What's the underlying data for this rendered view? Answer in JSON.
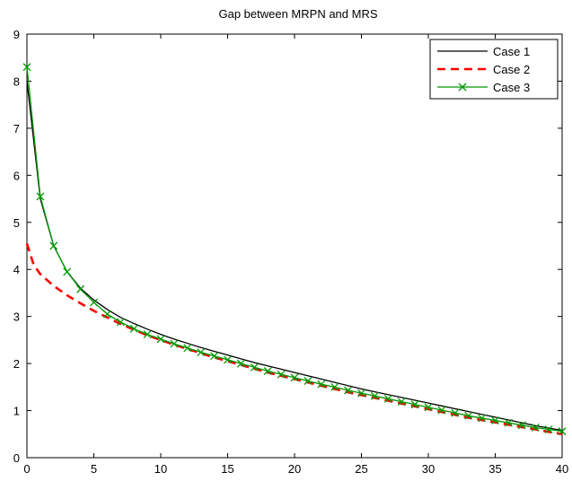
{
  "chart_data": {
    "type": "line",
    "title": "Gap between MRPN and MRS",
    "xlabel": "",
    "ylabel": "",
    "xlim": [
      0,
      40
    ],
    "ylim": [
      0,
      9
    ],
    "xticks": [
      0,
      5,
      10,
      15,
      20,
      25,
      30,
      35,
      40
    ],
    "yticks": [
      0,
      1,
      2,
      3,
      4,
      5,
      6,
      7,
      8,
      9
    ],
    "grid": false,
    "legend_position": "top-right",
    "series": [
      {
        "name": "Case 1",
        "color": "#000000",
        "style": "solid",
        "marker": "none",
        "x": [
          0,
          1,
          2,
          3,
          4,
          5,
          6,
          7,
          8,
          9,
          10,
          11,
          12,
          13,
          14,
          15,
          16,
          17,
          18,
          19,
          20,
          21,
          22,
          23,
          24,
          25,
          26,
          27,
          28,
          29,
          30,
          31,
          32,
          33,
          34,
          35,
          36,
          37,
          38,
          39,
          40
        ],
        "y": [
          8.0,
          5.5,
          4.5,
          3.95,
          3.6,
          3.35,
          3.15,
          2.98,
          2.85,
          2.73,
          2.62,
          2.52,
          2.43,
          2.34,
          2.26,
          2.18,
          2.1,
          2.02,
          1.95,
          1.88,
          1.81,
          1.74,
          1.67,
          1.6,
          1.53,
          1.46,
          1.4,
          1.34,
          1.28,
          1.22,
          1.16,
          1.1,
          1.04,
          0.98,
          0.92,
          0.86,
          0.8,
          0.74,
          0.68,
          0.63,
          0.58
        ]
      },
      {
        "name": "Case 2",
        "color": "#ff0000",
        "style": "dashed",
        "marker": "none",
        "x": [
          0,
          0.5,
          1,
          2,
          3,
          4,
          5,
          6,
          7,
          8,
          9,
          10,
          11,
          12,
          13,
          14,
          15,
          16,
          17,
          18,
          19,
          20,
          21,
          22,
          23,
          24,
          25,
          26,
          27,
          28,
          29,
          30,
          31,
          32,
          33,
          34,
          35,
          36,
          37,
          38,
          39,
          40
        ],
        "y": [
          4.55,
          4.1,
          3.9,
          3.65,
          3.45,
          3.28,
          3.12,
          2.98,
          2.84,
          2.72,
          2.6,
          2.5,
          2.4,
          2.31,
          2.22,
          2.13,
          2.05,
          1.97,
          1.89,
          1.81,
          1.74,
          1.67,
          1.6,
          1.53,
          1.46,
          1.39,
          1.33,
          1.27,
          1.21,
          1.15,
          1.09,
          1.03,
          0.97,
          0.91,
          0.85,
          0.8,
          0.75,
          0.7,
          0.65,
          0.6,
          0.55,
          0.5
        ]
      },
      {
        "name": "Case 3",
        "color": "#009900",
        "style": "solid",
        "marker": "x",
        "x": [
          0,
          1,
          2,
          3,
          4,
          5,
          6,
          7,
          8,
          9,
          10,
          11,
          12,
          13,
          14,
          15,
          16,
          17,
          18,
          19,
          20,
          21,
          22,
          23,
          24,
          25,
          26,
          27,
          28,
          29,
          30,
          31,
          32,
          33,
          34,
          35,
          36,
          37,
          38,
          39,
          40
        ],
        "y": [
          8.3,
          5.55,
          4.5,
          3.95,
          3.58,
          3.3,
          3.05,
          2.88,
          2.74,
          2.62,
          2.52,
          2.42,
          2.33,
          2.24,
          2.16,
          2.08,
          2.0,
          1.92,
          1.84,
          1.77,
          1.7,
          1.63,
          1.56,
          1.5,
          1.43,
          1.37,
          1.31,
          1.25,
          1.19,
          1.13,
          1.07,
          1.01,
          0.95,
          0.89,
          0.84,
          0.79,
          0.74,
          0.69,
          0.64,
          0.6,
          0.56
        ]
      }
    ]
  }
}
